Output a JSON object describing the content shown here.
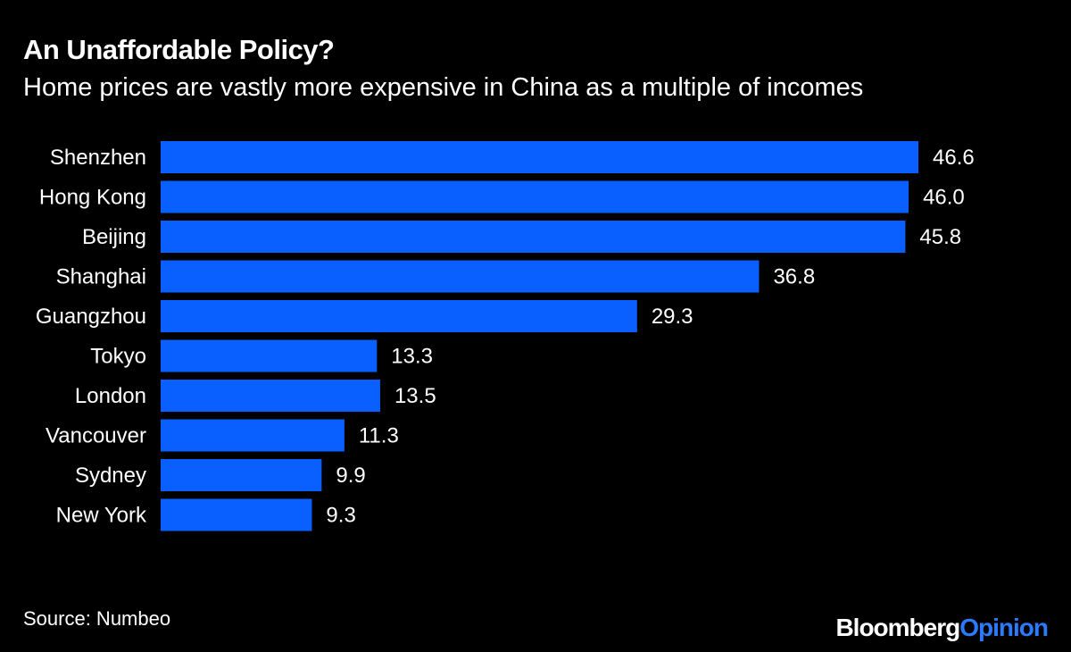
{
  "title": "An Unaffordable Policy?",
  "subtitle": "Home prices are vastly more expensive in China as a multiple of incomes",
  "source": "Source: Numbeo",
  "logo": {
    "brand": "Bloomberg",
    "product": "Opinion",
    "brand_color": "#ffffff",
    "product_color": "#2b7bff"
  },
  "colors": {
    "bar": "#0a5fff",
    "background": "#000000",
    "text": "#ffffff"
  },
  "chart_data": {
    "type": "bar",
    "orientation": "horizontal",
    "categories": [
      "Shenzhen",
      "Hong Kong",
      "Beijing",
      "Shanghai",
      "Guangzhou",
      "Tokyo",
      "London",
      "Vancouver",
      "Sydney",
      "New York"
    ],
    "values": [
      46.6,
      46.0,
      45.8,
      36.8,
      29.3,
      13.3,
      13.5,
      11.3,
      9.9,
      9.3
    ],
    "value_labels": [
      "46.6",
      "46.0",
      "45.8",
      "36.8",
      "29.3",
      "13.3",
      "13.5",
      "11.3",
      "9.9",
      "9.3"
    ],
    "title": "An Unaffordable Policy?",
    "subtitle": "Home prices are vastly more expensive in China as a multiple of incomes",
    "xlabel": "",
    "ylabel": "",
    "xlim": [
      0,
      46.6
    ],
    "grid": false,
    "legend": "none"
  }
}
